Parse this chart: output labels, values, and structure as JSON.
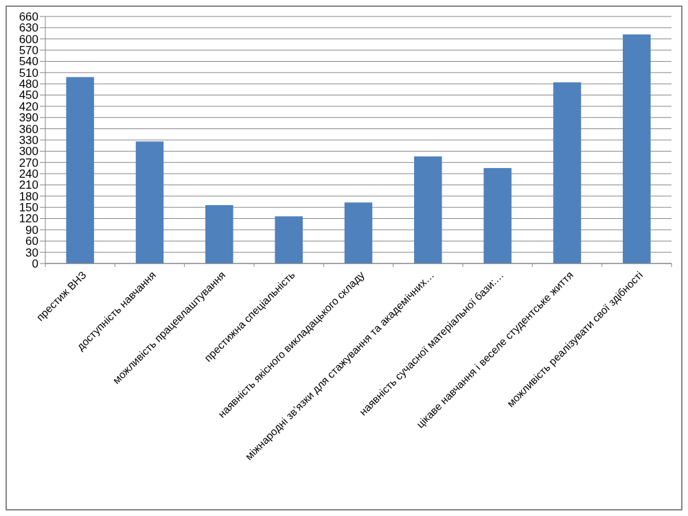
{
  "chart_data": {
    "type": "bar",
    "categories": [
      "престиж ВНЗ",
      "доступність навчання",
      "можливість працевлаштування",
      "престижна спеціальність",
      "наявність якісного викладацького складу",
      "міжнародні зв’язки для стажування та академічних…",
      "наявність сучасної матеріальної бази:…",
      "цікаве навчання і веселе студентське життя",
      "можливість реалізувати свої здібності"
    ],
    "values": [
      498,
      326,
      156,
      126,
      163,
      286,
      255,
      484,
      612
    ],
    "color": "#4f81bd",
    "ylim": [
      0,
      660
    ],
    "yticks": [
      0,
      30,
      60,
      90,
      120,
      150,
      180,
      210,
      240,
      270,
      300,
      330,
      360,
      390,
      420,
      450,
      480,
      510,
      540,
      570,
      600,
      630,
      660
    ],
    "grid": "y"
  }
}
